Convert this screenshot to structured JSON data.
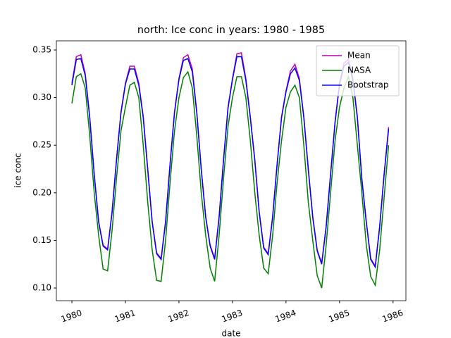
{
  "chart_data": {
    "type": "line",
    "title": "north: Ice conc in years: 1980 - 1985",
    "xlabel": "date",
    "ylabel": "ice conc",
    "x": [
      1980,
      1980.083,
      1980.167,
      1980.25,
      1980.333,
      1980.417,
      1980.5,
      1980.583,
      1980.667,
      1980.75,
      1980.833,
      1980.917,
      1981,
      1981.083,
      1981.167,
      1981.25,
      1981.333,
      1981.417,
      1981.5,
      1981.583,
      1981.667,
      1981.75,
      1981.833,
      1981.917,
      1982,
      1982.083,
      1982.167,
      1982.25,
      1982.333,
      1982.417,
      1982.5,
      1982.583,
      1982.667,
      1982.75,
      1982.833,
      1982.917,
      1983,
      1983.083,
      1983.167,
      1983.25,
      1983.333,
      1983.417,
      1983.5,
      1983.583,
      1983.667,
      1983.75,
      1983.833,
      1983.917,
      1984,
      1984.083,
      1984.167,
      1984.25,
      1984.333,
      1984.417,
      1984.5,
      1984.583,
      1984.667,
      1984.75,
      1984.833,
      1984.917,
      1985,
      1985.083,
      1985.167,
      1985.25,
      1985.333,
      1985.417,
      1985.5,
      1985.583,
      1985.667,
      1985.75,
      1985.833,
      1985.917
    ],
    "series": [
      {
        "name": "Mean",
        "color": "#bf00bf",
        "values": [
          0.315,
          0.343,
          0.345,
          0.325,
          0.28,
          0.22,
          0.17,
          0.145,
          0.141,
          0.18,
          0.235,
          0.285,
          0.315,
          0.333,
          0.333,
          0.315,
          0.28,
          0.225,
          0.17,
          0.137,
          0.131,
          0.17,
          0.23,
          0.285,
          0.32,
          0.342,
          0.345,
          0.33,
          0.285,
          0.225,
          0.175,
          0.145,
          0.131,
          0.175,
          0.235,
          0.29,
          0.32,
          0.346,
          0.347,
          0.32,
          0.28,
          0.235,
          0.18,
          0.143,
          0.136,
          0.175,
          0.23,
          0.28,
          0.307,
          0.328,
          0.335,
          0.32,
          0.28,
          0.225,
          0.175,
          0.14,
          0.126,
          0.165,
          0.22,
          0.275,
          0.315,
          0.336,
          0.34,
          0.32,
          0.28,
          0.215,
          0.17,
          0.131,
          0.123,
          0.165,
          0.22,
          0.269
        ]
      },
      {
        "name": "NASA",
        "color": "#008000",
        "values": [
          0.294,
          0.322,
          0.325,
          0.31,
          0.26,
          0.2,
          0.155,
          0.12,
          0.118,
          0.16,
          0.215,
          0.265,
          0.29,
          0.313,
          0.316,
          0.3,
          0.25,
          0.19,
          0.14,
          0.108,
          0.107,
          0.15,
          0.21,
          0.265,
          0.3,
          0.321,
          0.327,
          0.31,
          0.26,
          0.2,
          0.155,
          0.121,
          0.107,
          0.155,
          0.215,
          0.27,
          0.3,
          0.322,
          0.322,
          0.3,
          0.255,
          0.2,
          0.155,
          0.121,
          0.115,
          0.155,
          0.21,
          0.255,
          0.29,
          0.306,
          0.313,
          0.3,
          0.25,
          0.19,
          0.15,
          0.113,
          0.1,
          0.145,
          0.2,
          0.255,
          0.29,
          0.31,
          0.322,
          0.3,
          0.25,
          0.2,
          0.145,
          0.112,
          0.103,
          0.14,
          0.195,
          0.25
        ]
      },
      {
        "name": "Bootstrap",
        "color": "#0000ff",
        "values": [
          0.313,
          0.34,
          0.341,
          0.323,
          0.279,
          0.219,
          0.169,
          0.144,
          0.14,
          0.179,
          0.234,
          0.284,
          0.314,
          0.33,
          0.33,
          0.313,
          0.279,
          0.224,
          0.169,
          0.136,
          0.13,
          0.169,
          0.229,
          0.284,
          0.319,
          0.339,
          0.341,
          0.327,
          0.284,
          0.224,
          0.174,
          0.144,
          0.13,
          0.174,
          0.234,
          0.289,
          0.319,
          0.343,
          0.343,
          0.318,
          0.279,
          0.234,
          0.179,
          0.142,
          0.135,
          0.174,
          0.229,
          0.279,
          0.306,
          0.325,
          0.331,
          0.318,
          0.279,
          0.224,
          0.174,
          0.139,
          0.125,
          0.164,
          0.219,
          0.274,
          0.314,
          0.333,
          0.337,
          0.318,
          0.279,
          0.214,
          0.169,
          0.13,
          0.122,
          0.164,
          0.219,
          0.267
        ]
      }
    ],
    "xlim": [
      1979.71,
      1986.24
    ],
    "xticks": [
      1980,
      1981,
      1982,
      1983,
      1984,
      1985,
      1986
    ],
    "ylim": [
      0.0867,
      0.3596
    ],
    "yticks": [
      {
        "value": 0.1,
        "label": "0.10"
      },
      {
        "value": 0.15,
        "label": "0.15"
      },
      {
        "value": 0.2,
        "label": "0.20"
      },
      {
        "value": 0.25,
        "label": "0.25"
      },
      {
        "value": 0.3,
        "label": "0.30"
      },
      {
        "value": 0.35,
        "label": "0.35"
      }
    ],
    "legend": "upper right",
    "grid": false
  }
}
